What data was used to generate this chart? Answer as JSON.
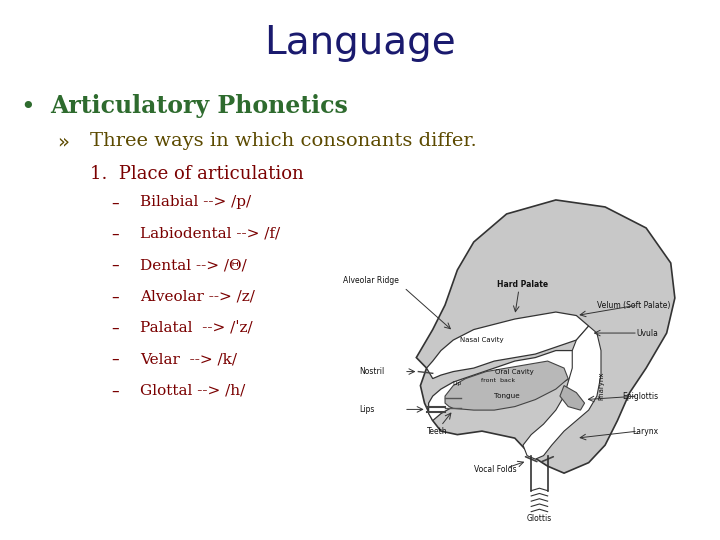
{
  "title": "Language",
  "title_color": "#1a1a6e",
  "title_fontsize": 28,
  "bullet_text": "Articulatory Phonetics",
  "bullet_color": "#2e6b2e",
  "bullet_fontsize": 17,
  "sub_bullet_text": "Three ways in which consonants differ.",
  "sub_bullet_color": "#5c4a00",
  "sub_bullet_fontsize": 14,
  "numbered_text": "1.  Place of articulation",
  "numbered_color": "#7a0000",
  "numbered_fontsize": 13,
  "dash_items": [
    "Bilabial --> /p/",
    "Labiodental --> /f/",
    "Dental --> /Θ/",
    "Alveolar --> /z/",
    "Palatal  --> /ˈz/",
    "Velar  --> /k/",
    "Glottal --> /h/"
  ],
  "dash_color": "#7a0000",
  "dash_fontsize": 11,
  "background_color": "#ffffff",
  "diagram_face_color": "#c8c8c8",
  "diagram_edge_color": "#333333",
  "diagram_label_color": "#111111",
  "diagram_label_fontsize": 5.5
}
